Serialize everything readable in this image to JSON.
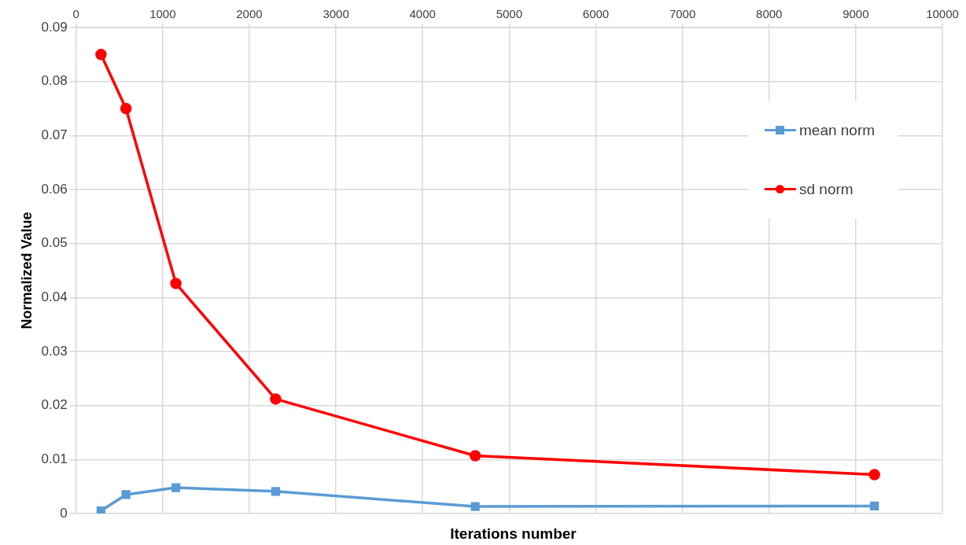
{
  "chart_data": {
    "type": "line",
    "xlabel": "Iterations number",
    "ylabel": "Normalized Value",
    "x": [
      288,
      576,
      1152,
      2304,
      4608,
      9216
    ],
    "series": [
      {
        "name": "mean norm",
        "color": "#5b9bd5",
        "marker": "square",
        "values": [
          0.0005,
          0.0035,
          0.0048,
          0.0041,
          0.0013,
          0.0014
        ]
      },
      {
        "name": "sd norm",
        "color": "#ff0000",
        "marker": "circle",
        "values": [
          0.085,
          0.075,
          0.0426,
          0.0212,
          0.0107,
          0.0072
        ]
      }
    ],
    "xlim": [
      0,
      10000
    ],
    "xticks": [
      0,
      1000,
      2000,
      3000,
      4000,
      5000,
      6000,
      7000,
      8000,
      9000,
      10000
    ],
    "ylim": [
      0,
      0.09
    ],
    "yticks": [
      0,
      0.01,
      0.02,
      0.03,
      0.04,
      0.05,
      0.06,
      0.07,
      0.08,
      0.09
    ],
    "grid": true,
    "legend": "right",
    "line_style": "solid"
  }
}
